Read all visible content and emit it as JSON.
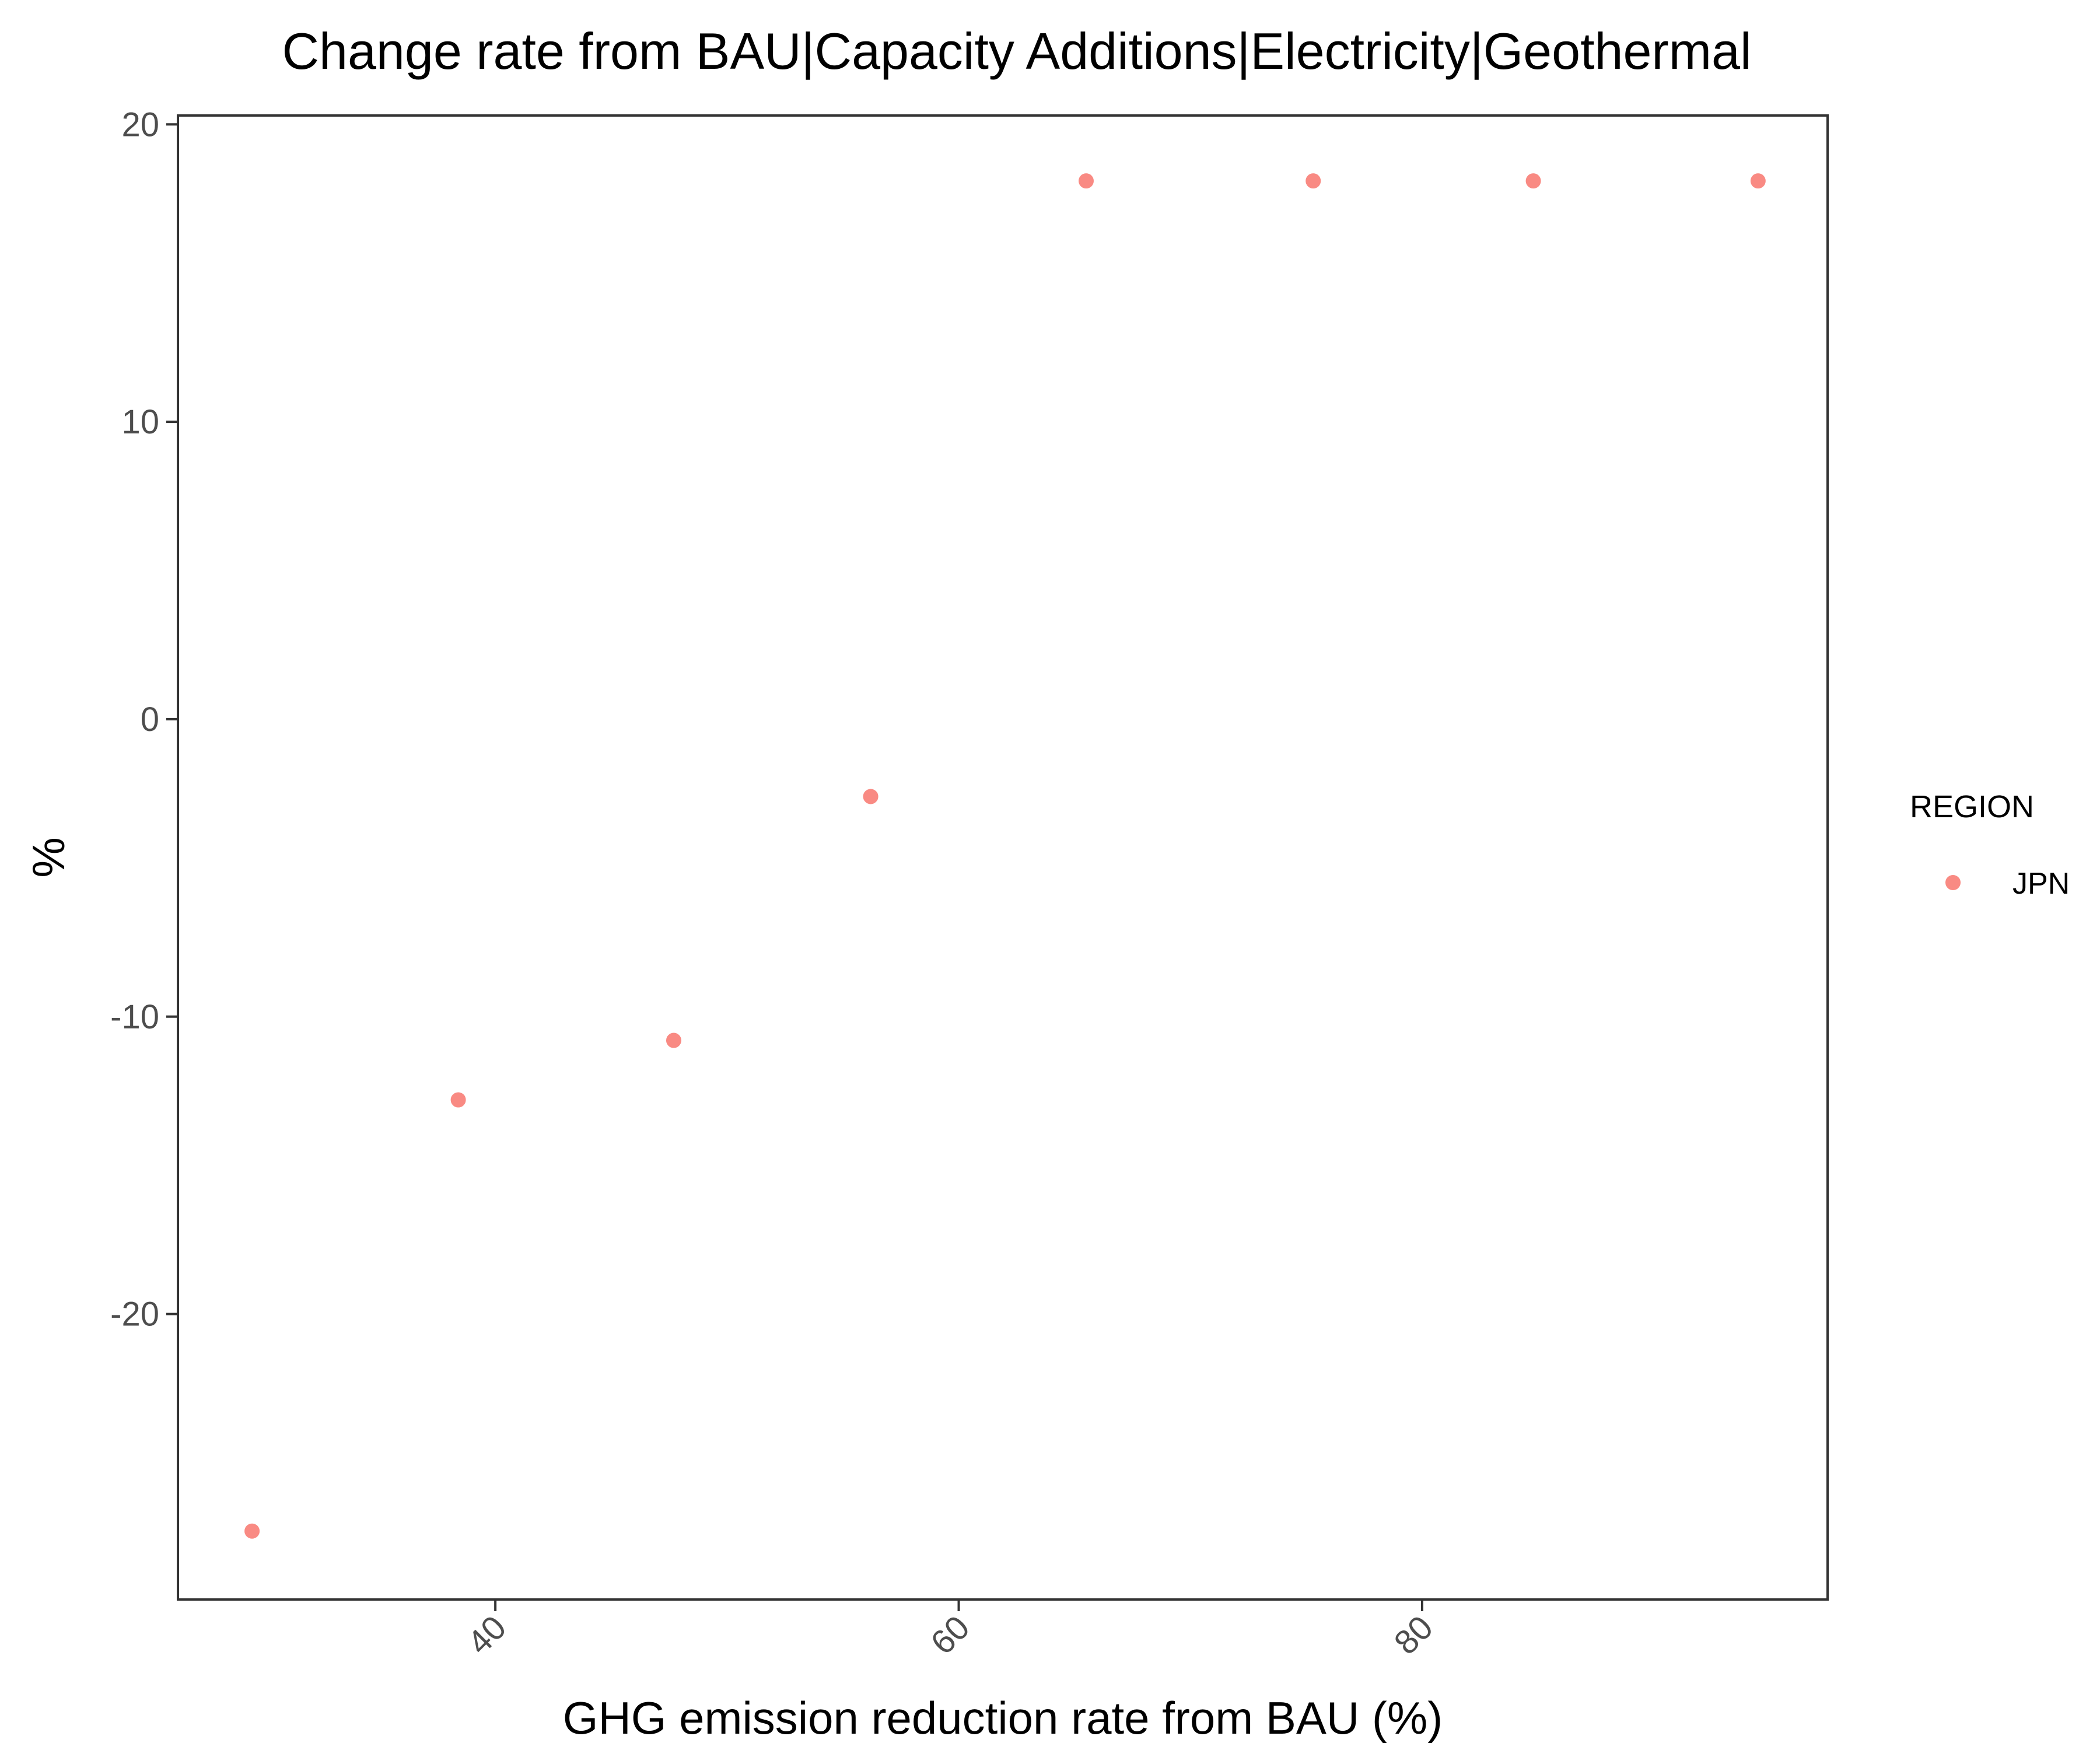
{
  "chart_data": {
    "type": "scatter",
    "title": "Change rate from BAU|Capacity Additions|Electricity|Geothermal",
    "xlabel": "GHG emission reduction rate from BAU (%)",
    "ylabel": "%",
    "xlim": [
      26.3,
      97.5
    ],
    "ylim": [
      -29.6,
      20.3
    ],
    "x_ticks": [
      40,
      60,
      80
    ],
    "y_ticks": [
      -20,
      -10,
      0,
      10,
      20
    ],
    "x_tick_labels": [
      "40",
      "60",
      "80"
    ],
    "y_tick_labels": [
      "-20",
      "-10",
      "0",
      "10",
      "20"
    ],
    "grid": false,
    "legend": {
      "title": "REGION",
      "position": "right",
      "entries": [
        "JPN"
      ]
    },
    "series": [
      {
        "name": "JPN",
        "color": "#F8766D",
        "points": [
          {
            "x": 29.5,
            "y": -27.3
          },
          {
            "x": 38.4,
            "y": -12.8
          },
          {
            "x": 47.7,
            "y": -10.8
          },
          {
            "x": 56.2,
            "y": -2.6
          },
          {
            "x": 65.5,
            "y": 18.1
          },
          {
            "x": 75.3,
            "y": 18.1
          },
          {
            "x": 84.8,
            "y": 18.1
          },
          {
            "x": 94.5,
            "y": 18.1
          }
        ]
      }
    ]
  }
}
